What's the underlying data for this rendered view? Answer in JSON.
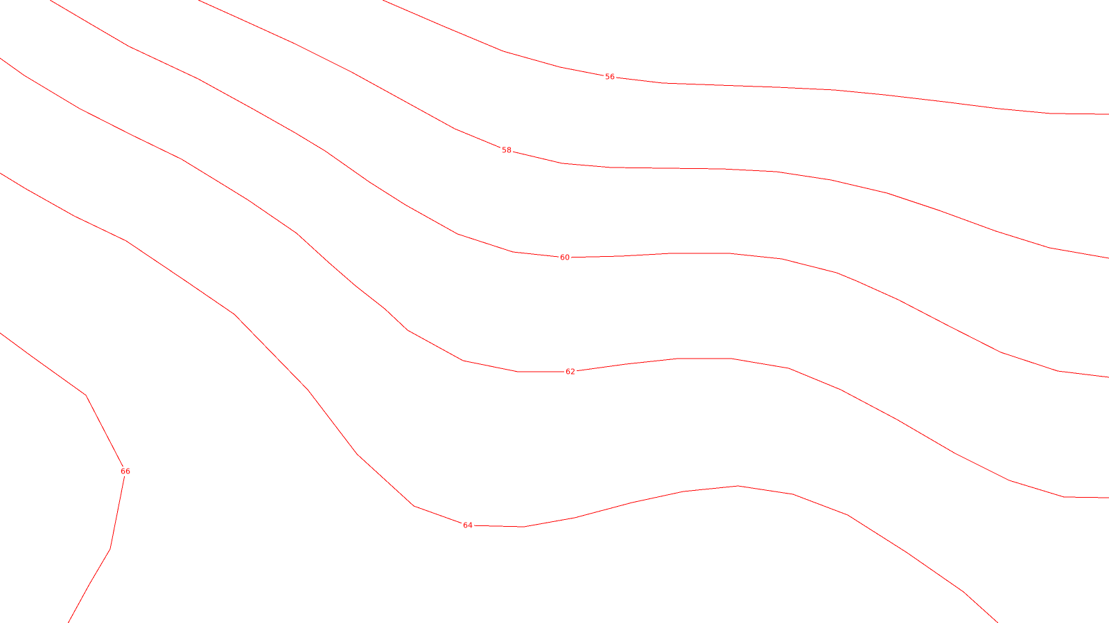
{
  "map": {
    "line_color": "#ff0000",
    "background_color": "#ffffff",
    "contours": [
      {
        "id": "56",
        "label": "56"
      },
      {
        "id": "58",
        "label": "58"
      },
      {
        "id": "60",
        "label": "60"
      },
      {
        "id": "62",
        "label": "62"
      },
      {
        "id": "64",
        "label": "64"
      },
      {
        "id": "66",
        "label": "66"
      }
    ]
  }
}
